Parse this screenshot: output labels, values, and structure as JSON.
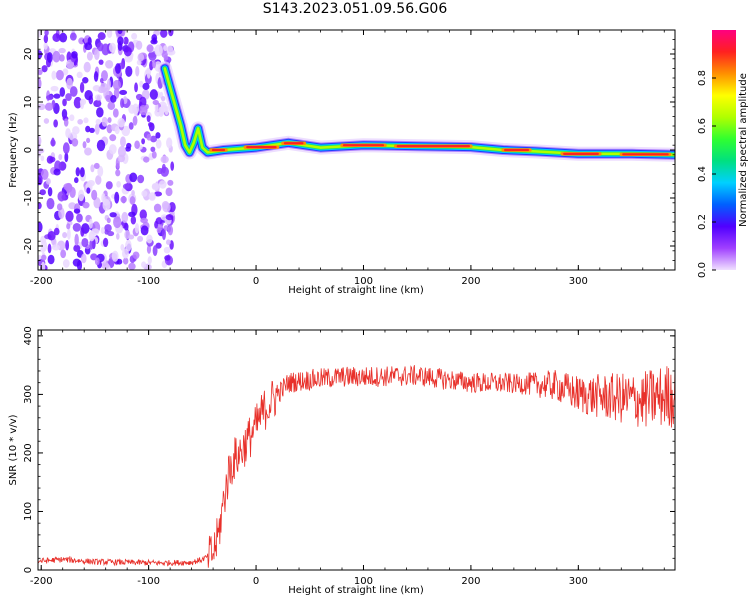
{
  "title": "S143.2023.051.09.56.G06",
  "colors": {
    "snr_line": "#e8302a",
    "axis": "#000000",
    "colorbar_stops": [
      "#f0e0ff",
      "#a040ff",
      "#5000ff",
      "#0060ff",
      "#00d0ff",
      "#00e080",
      "#30ff30",
      "#b0ff00",
      "#ffff00",
      "#ff9000",
      "#ff2020",
      "#ff0080"
    ]
  },
  "chart_data": [
    {
      "type": "heatmap",
      "title": "",
      "xlabel": "Height of straight line (km)",
      "ylabel": "Frequency (Hz)",
      "xlim": [
        -203,
        390
      ],
      "ylim": [
        -25,
        25
      ],
      "xticks": [
        "-200",
        "-100",
        "0",
        "100",
        "200",
        "300"
      ],
      "xtick_values": [
        -200,
        -100,
        0,
        100,
        200,
        300
      ],
      "yticks": [
        "-20",
        "-10",
        "0",
        "10",
        "20"
      ],
      "ytick_values": [
        -20,
        -10,
        0,
        10,
        20
      ],
      "colorbar": {
        "label": "Normalized spectral amplitude",
        "ticks": [
          "0.0",
          "0.2",
          "0.4",
          "0.6",
          "0.8"
        ],
        "tick_values": [
          0.0,
          0.2,
          0.4,
          0.6,
          0.8
        ],
        "range": [
          0,
          1
        ]
      },
      "noise_region_x": [
        -203,
        -83
      ],
      "ridge": [
        {
          "x": -85,
          "y": 17
        },
        {
          "x": -80,
          "y": 13
        },
        {
          "x": -75,
          "y": 9
        },
        {
          "x": -70,
          "y": 5
        },
        {
          "x": -66,
          "y": 1
        },
        {
          "x": -62,
          "y": -0.5
        },
        {
          "x": -58,
          "y": 1.5
        },
        {
          "x": -54,
          "y": 4.5
        },
        {
          "x": -50,
          "y": 0.5
        },
        {
          "x": -45,
          "y": -0.5
        },
        {
          "x": -30,
          "y": 0
        },
        {
          "x": 0,
          "y": 0.5
        },
        {
          "x": 30,
          "y": 1.5
        },
        {
          "x": 60,
          "y": 0.5
        },
        {
          "x": 100,
          "y": 1
        },
        {
          "x": 150,
          "y": 0.8
        },
        {
          "x": 200,
          "y": 0.6
        },
        {
          "x": 230,
          "y": 0
        },
        {
          "x": 260,
          "y": -0.3
        },
        {
          "x": 300,
          "y": -0.8
        },
        {
          "x": 350,
          "y": -0.8
        },
        {
          "x": 390,
          "y": -1
        }
      ]
    },
    {
      "type": "line",
      "title": "",
      "xlabel": "Height of straight line (km)",
      "ylabel": "SNR (10 * v/v)",
      "xlim": [
        -203,
        390
      ],
      "ylim": [
        0,
        410
      ],
      "xticks": [
        "-200",
        "-100",
        "0",
        "100",
        "200",
        "300"
      ],
      "xtick_values": [
        -200,
        -100,
        0,
        100,
        200,
        300
      ],
      "yticks": [
        "0",
        "100",
        "200",
        "300",
        "400"
      ],
      "ytick_values": [
        0,
        100,
        200,
        300,
        400
      ],
      "series": [
        {
          "x": [
            -203,
            -180,
            -150,
            -120,
            -90,
            -60,
            -50,
            -40,
            -35,
            -30,
            -25,
            -20,
            -15,
            -10,
            -5,
            0,
            5,
            10,
            20,
            30,
            50,
            80,
            100,
            150,
            200,
            250,
            280,
            300,
            330,
            360,
            390
          ],
          "y": [
            15,
            18,
            14,
            13,
            12,
            13,
            18,
            28,
            60,
            120,
            170,
            190,
            200,
            215,
            230,
            245,
            265,
            280,
            300,
            320,
            325,
            330,
            330,
            332,
            320,
            318,
            315,
            300,
            295,
            290,
            300
          ]
        }
      ]
    }
  ]
}
